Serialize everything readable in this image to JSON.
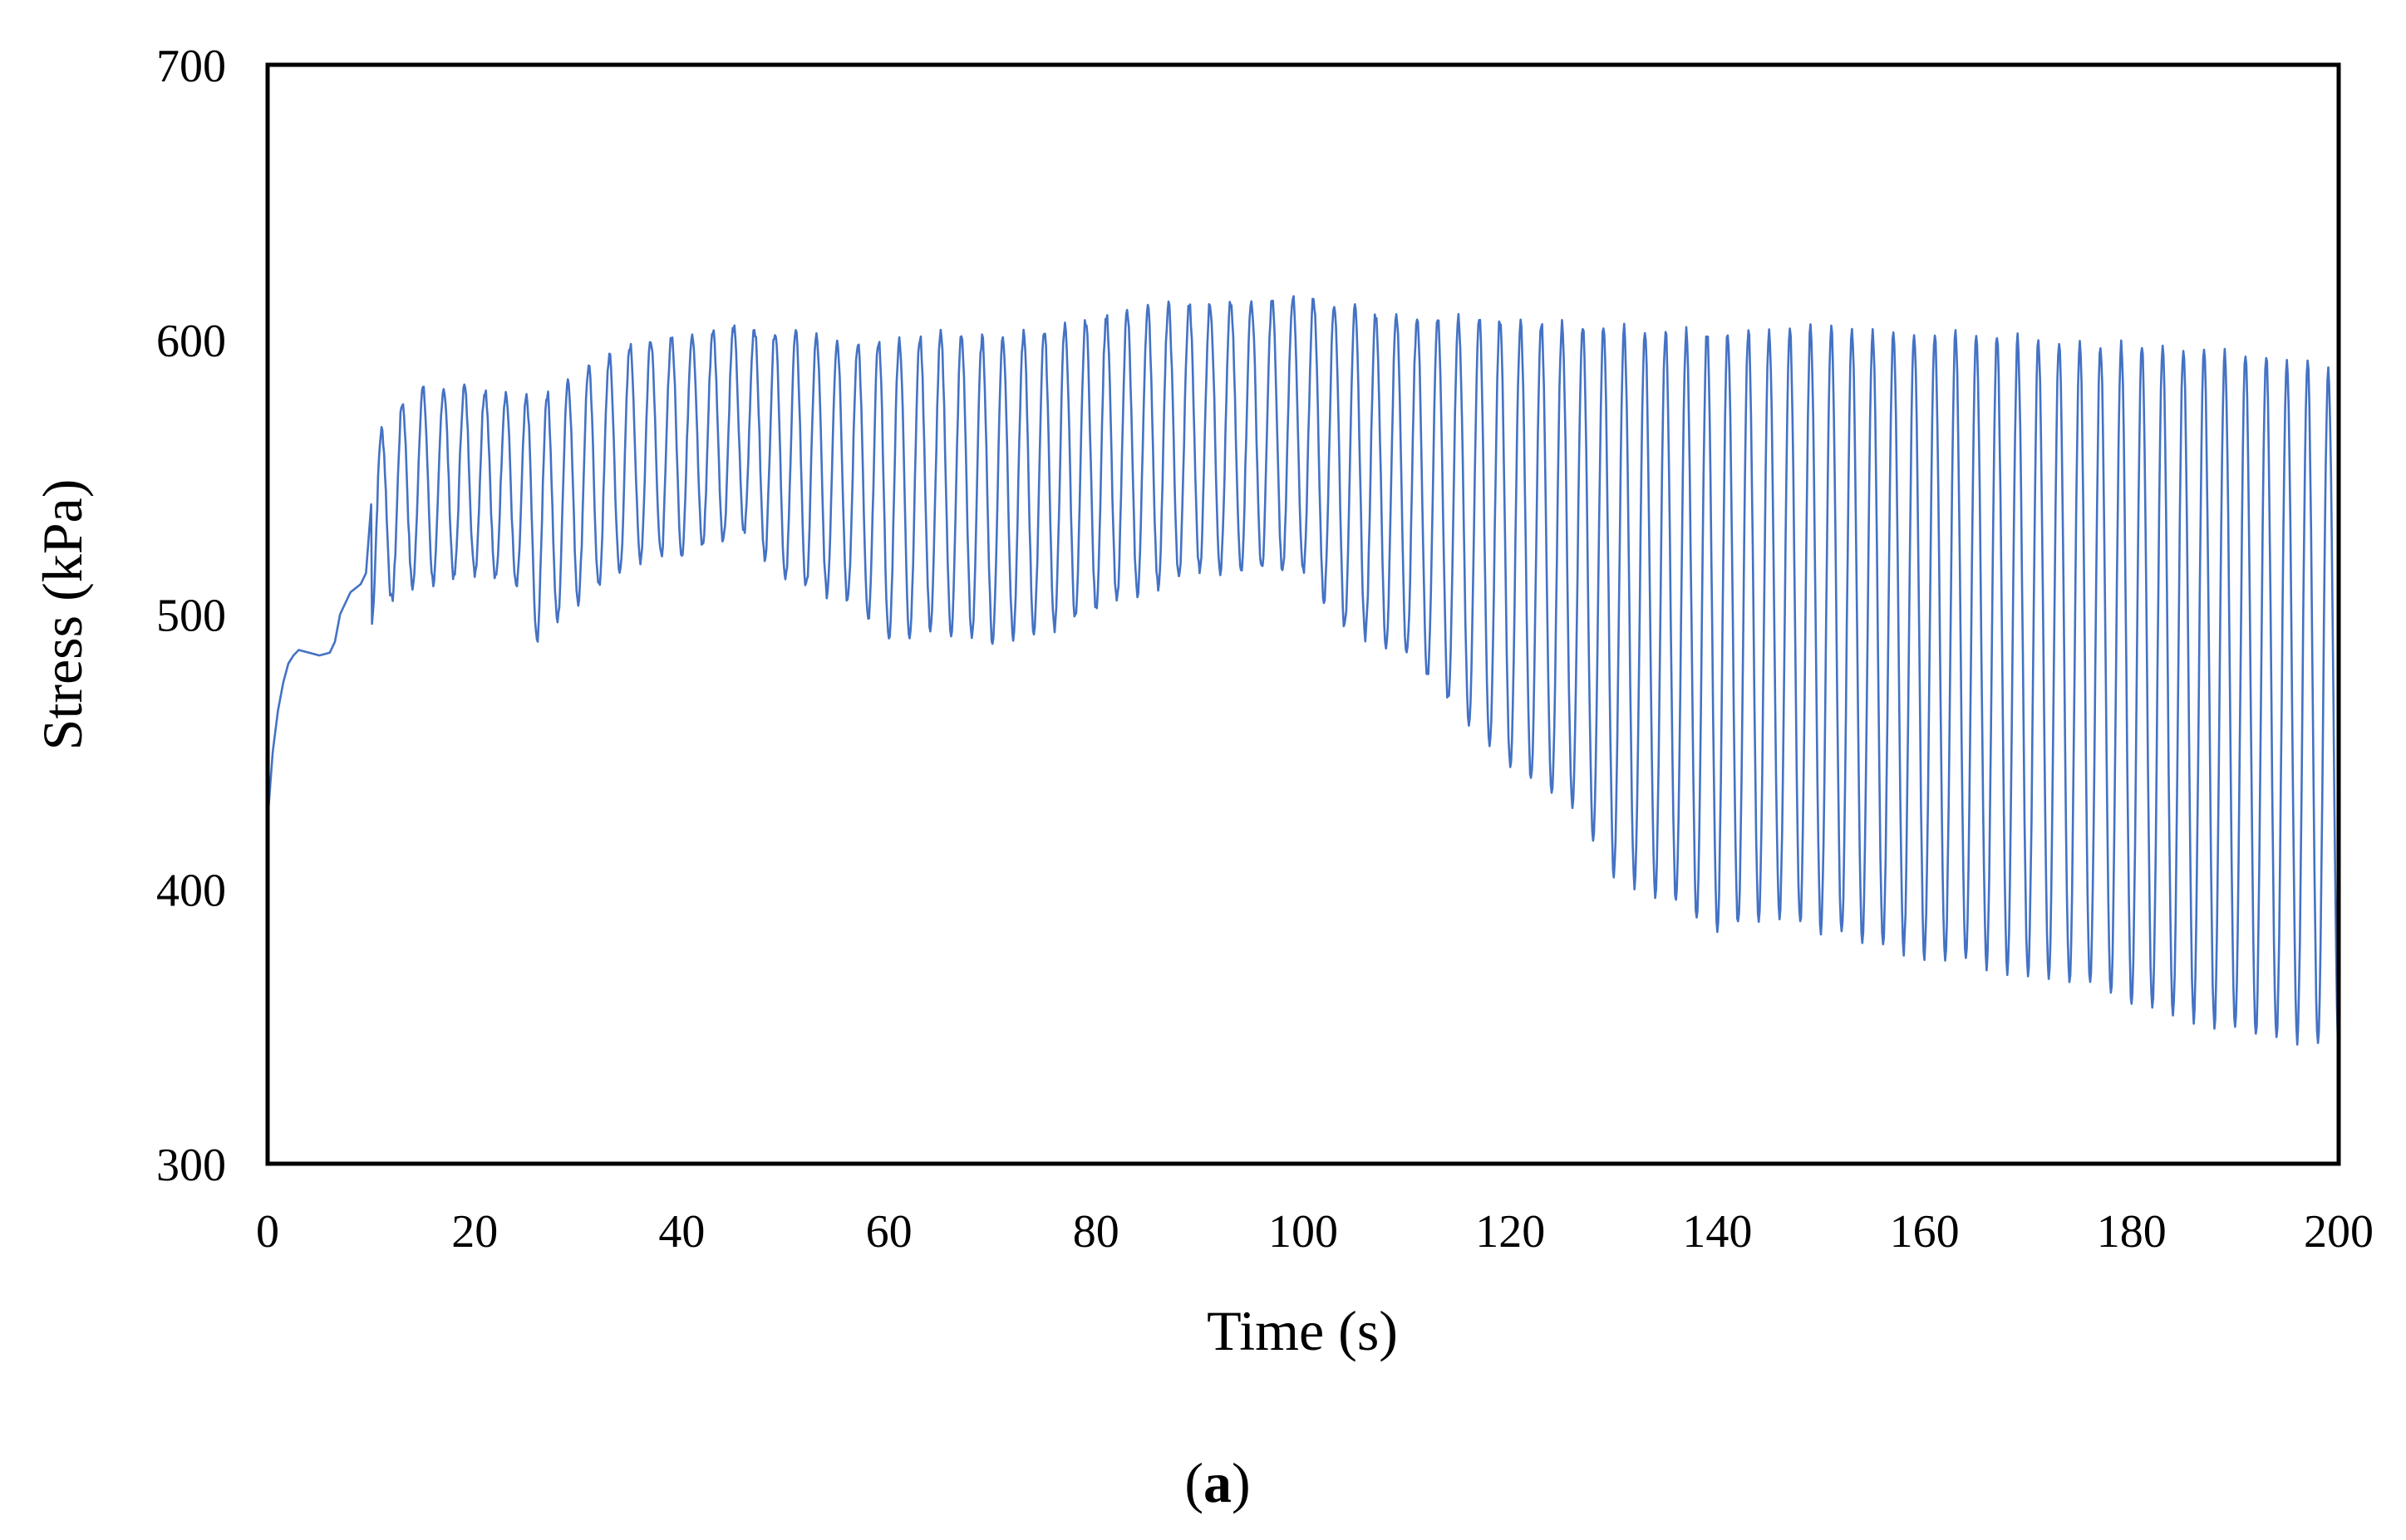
{
  "chart_data": {
    "type": "line",
    "title": "",
    "xlabel": "Time (s)",
    "ylabel": "Stress  (kPa)",
    "caption": {
      "open": "(",
      "letter": "a",
      "close": ")"
    },
    "xlim": [
      0,
      200
    ],
    "ylim": [
      300,
      700
    ],
    "xticks": [
      "0",
      "20",
      "40",
      "60",
      "80",
      "100",
      "120",
      "140",
      "160",
      "180",
      "200"
    ],
    "yticks": [
      "300",
      "400",
      "500",
      "600",
      "700"
    ],
    "grid": false,
    "legend": "none",
    "line_color": "#4472C4",
    "series": [
      {
        "cycle_period_s": 2.0,
        "initial_ramp": {
          "x": [
            0,
            0.5,
            1.0,
            1.5,
            2.0,
            2.5,
            3.0,
            4.0,
            5.0,
            6.0,
            6.5,
            7.0,
            8.0,
            9.0,
            9.5,
            10.0
          ],
          "y": [
            425,
            450,
            465,
            475,
            482,
            485,
            487,
            486,
            485,
            486,
            490,
            500,
            508,
            511,
            515,
            540
          ]
        },
        "cycles_from_s": 10,
        "peak_envelope": {
          "x": [
            10,
            12,
            14,
            20,
            26,
            30,
            36,
            40,
            46,
            50,
            56,
            60,
            66,
            70,
            76,
            80,
            86,
            90,
            96,
            100,
            106,
            110,
            116,
            120,
            126,
            130,
            136,
            140,
            146,
            150,
            156,
            160,
            166,
            170,
            176,
            180,
            186,
            190,
            196,
            200
          ],
          "y": [
            562,
            572,
            582,
            583,
            578,
            588,
            600,
            602,
            605,
            603,
            599,
            600,
            602,
            600,
            604,
            608,
            612,
            613,
            614,
            616,
            610,
            608,
            608,
            607,
            606,
            604,
            603,
            603,
            604,
            605,
            603,
            603,
            601,
            600,
            598,
            598,
            597,
            596,
            593,
            588
          ]
        },
        "trough_envelope": {
          "x": [
            10,
            12,
            14,
            20,
            24,
            26,
            30,
            36,
            40,
            46,
            50,
            56,
            60,
            64,
            70,
            76,
            80,
            86,
            90,
            96,
            100,
            104,
            110,
            116,
            120,
            126,
            130,
            136,
            140,
            146,
            150,
            156,
            160,
            166,
            170,
            176,
            180,
            186,
            190,
            196,
            200
          ],
          "y": [
            495,
            505,
            510,
            515,
            510,
            490,
            505,
            520,
            522,
            530,
            512,
            505,
            490,
            495,
            490,
            495,
            502,
            510,
            516,
            516,
            515,
            495,
            485,
            460,
            445,
            430,
            405,
            395,
            385,
            390,
            385,
            380,
            375,
            372,
            368,
            365,
            358,
            352,
            348,
            345,
            342
          ]
        }
      }
    ]
  }
}
